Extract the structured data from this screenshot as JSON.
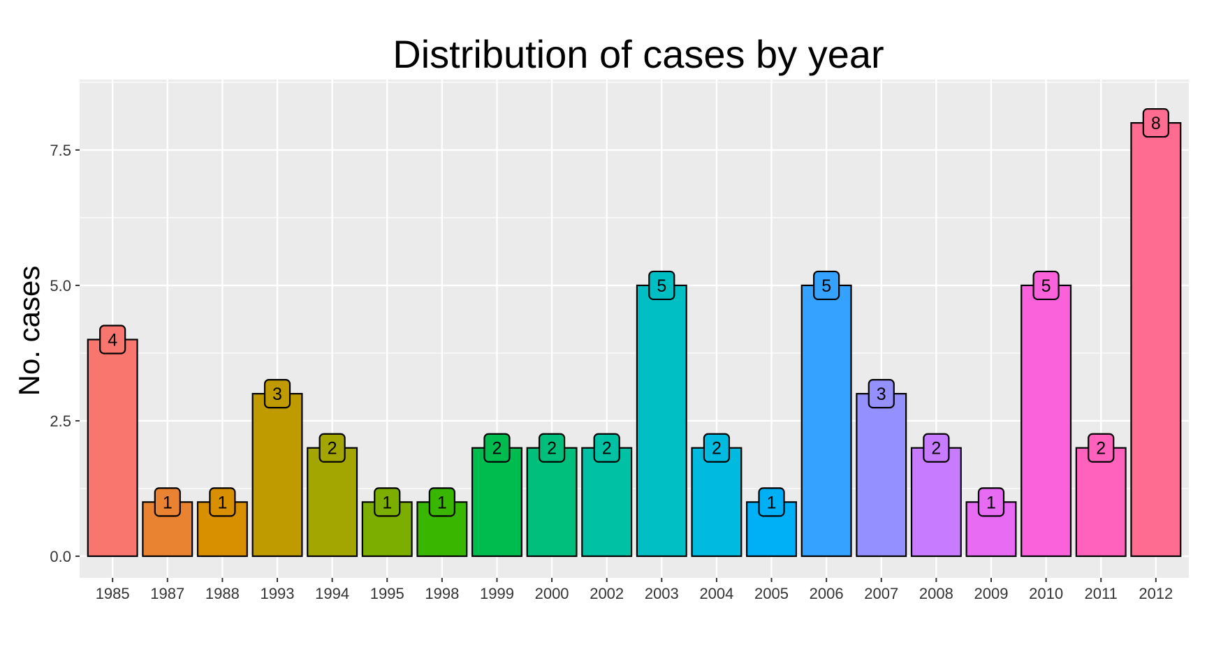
{
  "chart_data": {
    "type": "bar",
    "title": "Distribution of cases by year",
    "xlabel": "",
    "ylabel": "No. cases",
    "categories": [
      "1985",
      "1987",
      "1988",
      "1993",
      "1994",
      "1995",
      "1998",
      "1999",
      "2000",
      "2002",
      "2003",
      "2004",
      "2005",
      "2006",
      "2007",
      "2008",
      "2009",
      "2010",
      "2011",
      "2012"
    ],
    "values": [
      4,
      1,
      1,
      3,
      2,
      1,
      1,
      2,
      2,
      2,
      5,
      2,
      1,
      5,
      3,
      2,
      1,
      5,
      2,
      8
    ],
    "data_labels": [
      "4",
      "1",
      "1",
      "3",
      "2",
      "1",
      "1",
      "2",
      "2",
      "2",
      "5",
      "2",
      "1",
      "5",
      "3",
      "2",
      "1",
      "5",
      "2",
      "8"
    ],
    "colors": [
      "#F8766D",
      "#EA8331",
      "#D89000",
      "#C09B00",
      "#A3A500",
      "#7CAE00",
      "#39B600",
      "#00BB4E",
      "#00BF7D",
      "#00C1A3",
      "#00BFC4",
      "#00BAE0",
      "#00B0F6",
      "#35A2FF",
      "#9590FF",
      "#C77CFF",
      "#E76BF3",
      "#FA62DB",
      "#FF62BC",
      "#FF6C91"
    ],
    "y_ticks": [
      0,
      2.5,
      5,
      7.5
    ],
    "y_tick_labels": [
      "0.0",
      "2.5",
      "5.0",
      "7.5"
    ],
    "ylim": [
      -0.4,
      8.8
    ],
    "grid": true,
    "legend": "none",
    "panel_background": "#EBEBEB",
    "grid_color": "#FFFFFF",
    "bar_outline": "#000000"
  }
}
